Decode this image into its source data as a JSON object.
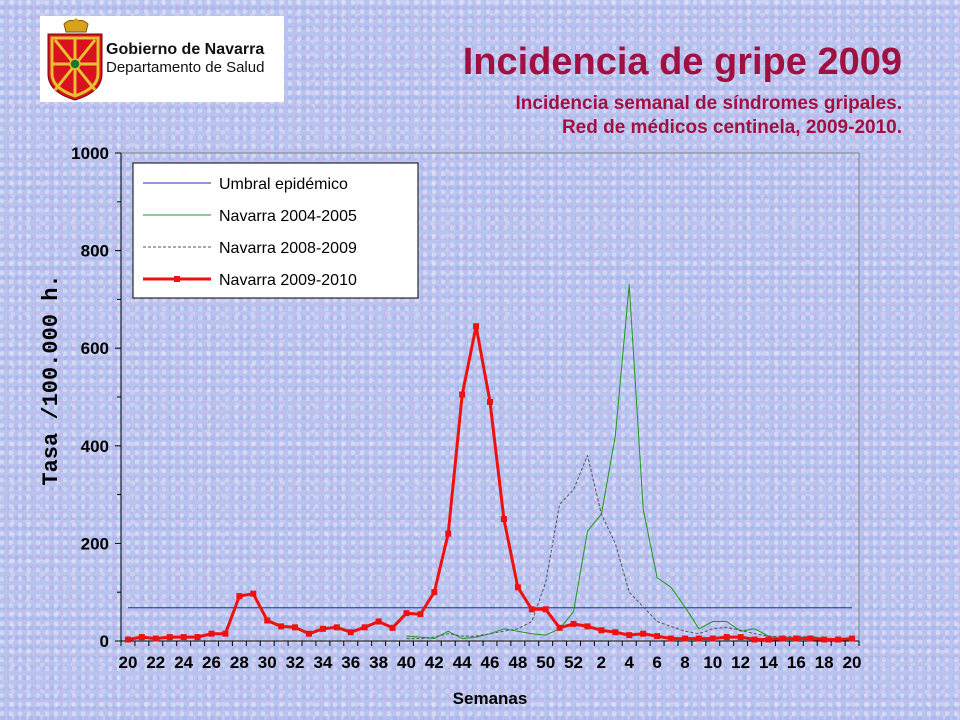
{
  "logo": {
    "line1": "Gobierno de Navarra",
    "line2": "Departamento de Salud"
  },
  "title": "Incidencia de gripe 2009",
  "subtitle": {
    "line1": "Incidencia semanal de síndromes gripales.",
    "line2": "Red de médicos centinela, 2009-2010."
  },
  "colors": {
    "title": "#a01040",
    "threshold": "#2233aa",
    "navarra_2004_2005": "#1a9a1a",
    "navarra_2008_2009": "#555555",
    "navarra_2009_2010": "#ee1111"
  },
  "chart_data": {
    "type": "line",
    "xlabel": "Semanas",
    "ylabel": "Tasa /100.000 h.",
    "ylim": [
      0,
      1000
    ],
    "yticks": [
      0,
      200,
      400,
      600,
      800,
      1000
    ],
    "x": [
      20,
      21,
      22,
      23,
      24,
      25,
      26,
      27,
      28,
      29,
      30,
      31,
      32,
      33,
      34,
      35,
      36,
      37,
      38,
      39,
      40,
      41,
      42,
      43,
      44,
      45,
      46,
      47,
      48,
      49,
      50,
      51,
      52,
      1,
      2,
      3,
      4,
      5,
      6,
      7,
      8,
      9,
      10,
      11,
      12,
      13,
      14,
      15,
      16,
      17,
      18,
      19,
      20
    ],
    "x_tick_labels": [
      "20",
      "22",
      "24",
      "26",
      "28",
      "30",
      "32",
      "34",
      "36",
      "38",
      "40",
      "42",
      "44",
      "46",
      "48",
      "50",
      "52",
      "2",
      "4",
      "6",
      "8",
      "10",
      "12",
      "14",
      "16",
      "18",
      "20"
    ],
    "legend_position": "top-left",
    "grid": false,
    "series": [
      {
        "name": "Umbral epidémico",
        "style": "solid-thin",
        "values": [
          68,
          68,
          68,
          68,
          68,
          68,
          68,
          68,
          68,
          68,
          68,
          68,
          68,
          68,
          68,
          68,
          68,
          68,
          68,
          68,
          68,
          68,
          68,
          68,
          68,
          68,
          68,
          68,
          68,
          68,
          68,
          68,
          68,
          68,
          68,
          68,
          68,
          68,
          68,
          68,
          68,
          68,
          68,
          68,
          68,
          68,
          68,
          68,
          68,
          68,
          68,
          68,
          68
        ]
      },
      {
        "name": "Navarra 2004-2005",
        "style": "solid-thin",
        "values": [
          null,
          null,
          null,
          null,
          null,
          null,
          null,
          null,
          null,
          null,
          null,
          null,
          null,
          null,
          null,
          null,
          null,
          null,
          null,
          null,
          10,
          8,
          5,
          20,
          5,
          8,
          15,
          25,
          20,
          15,
          12,
          25,
          60,
          225,
          260,
          420,
          730,
          270,
          130,
          110,
          70,
          25,
          40,
          40,
          20,
          25,
          10,
          5,
          5,
          10,
          5,
          5,
          5
        ]
      },
      {
        "name": "Navarra 2008-2009",
        "style": "dashed-thin",
        "values": [
          null,
          null,
          null,
          null,
          null,
          null,
          null,
          null,
          null,
          null,
          null,
          null,
          null,
          null,
          null,
          null,
          null,
          null,
          null,
          null,
          5,
          5,
          8,
          15,
          10,
          10,
          15,
          20,
          25,
          40,
          120,
          280,
          310,
          380,
          260,
          200,
          100,
          70,
          40,
          30,
          20,
          15,
          25,
          28,
          22,
          15,
          10,
          8,
          10,
          8,
          5,
          5,
          5
        ]
      },
      {
        "name": "Navarra 2009-2010",
        "style": "solid-thick-markers",
        "values": [
          3,
          8,
          5,
          8,
          8,
          8,
          15,
          15,
          92,
          97,
          42,
          30,
          28,
          15,
          25,
          28,
          18,
          28,
          40,
          27,
          57,
          55,
          100,
          220,
          505,
          645,
          490,
          250,
          110,
          65,
          65,
          27,
          35,
          30,
          22,
          18,
          12,
          15,
          10,
          5,
          5,
          5,
          5,
          8,
          8,
          3,
          3,
          5,
          5,
          5,
          3,
          3,
          5
        ]
      }
    ]
  }
}
